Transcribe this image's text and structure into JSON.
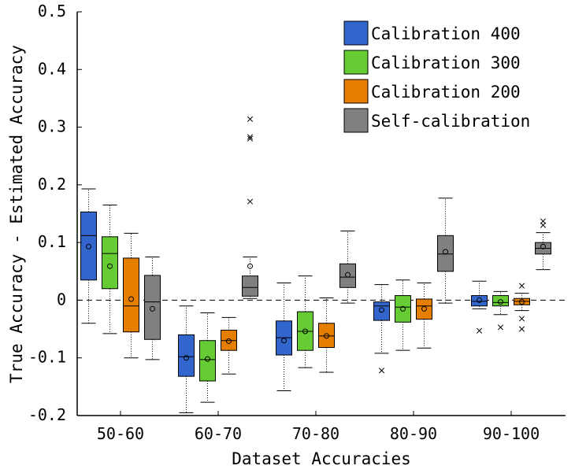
{
  "chart_data": {
    "type": "box",
    "xlabel": "Dataset Accuracies",
    "ylabel": "True Accuracy - Estimated Accuracy",
    "ylim": [
      -0.2,
      0.5
    ],
    "yticks": [
      -0.2,
      -0.1,
      0,
      0.1,
      0.2,
      0.3,
      0.4,
      0.5
    ],
    "ytick_labels": [
      "-0.2",
      "-0.1",
      "0",
      "0.1",
      "0.2",
      "0.3",
      "0.4",
      "0.5"
    ],
    "categories": [
      "50-60",
      "60-70",
      "70-80",
      "80-90",
      "90-100"
    ],
    "reference_line": 0,
    "legend_position": "top-right",
    "series": [
      {
        "name": "Calibration 400",
        "color": "#3366cc",
        "boxes": [
          {
            "whislo": -0.04,
            "q1": 0.035,
            "med": 0.112,
            "q3": 0.153,
            "whishi": 0.193,
            "mean": 0.093,
            "outliers": []
          },
          {
            "whislo": -0.195,
            "q1": -0.132,
            "med": -0.098,
            "q3": -0.06,
            "whishi": -0.01,
            "mean": -0.1,
            "outliers": []
          },
          {
            "whislo": -0.157,
            "q1": -0.095,
            "med": -0.065,
            "q3": -0.036,
            "whishi": 0.03,
            "mean": -0.07,
            "outliers": []
          },
          {
            "whislo": -0.092,
            "q1": -0.035,
            "med": -0.01,
            "q3": -0.003,
            "whishi": 0.027,
            "mean": -0.017,
            "outliers": [
              -0.122
            ]
          },
          {
            "whislo": -0.015,
            "q1": -0.01,
            "med": -0.002,
            "q3": 0.008,
            "whishi": 0.033,
            "mean": 0.0,
            "outliers": [
              -0.053
            ]
          }
        ]
      },
      {
        "name": "Calibration 300",
        "color": "#66cc33",
        "boxes": [
          {
            "whislo": -0.058,
            "q1": 0.02,
            "med": 0.081,
            "q3": 0.11,
            "whishi": 0.165,
            "mean": 0.059,
            "outliers": []
          },
          {
            "whislo": -0.177,
            "q1": -0.14,
            "med": -0.103,
            "q3": -0.07,
            "whishi": -0.022,
            "mean": -0.102,
            "outliers": []
          },
          {
            "whislo": -0.117,
            "q1": -0.087,
            "med": -0.054,
            "q3": -0.02,
            "whishi": 0.042,
            "mean": -0.054,
            "outliers": []
          },
          {
            "whislo": -0.087,
            "q1": -0.038,
            "med": -0.012,
            "q3": 0.008,
            "whishi": 0.035,
            "mean": -0.015,
            "outliers": []
          },
          {
            "whislo": -0.025,
            "q1": -0.01,
            "med": -0.004,
            "q3": 0.008,
            "whishi": 0.015,
            "mean": -0.003,
            "outliers": [
              -0.047
            ]
          }
        ]
      },
      {
        "name": "Calibration 200",
        "color": "#e67e00",
        "boxes": [
          {
            "whislo": -0.1,
            "q1": -0.055,
            "med": -0.01,
            "q3": 0.073,
            "whishi": 0.116,
            "mean": 0.002,
            "outliers": []
          },
          {
            "whislo": -0.128,
            "q1": -0.087,
            "med": -0.07,
            "q3": -0.052,
            "whishi": -0.03,
            "mean": -0.071,
            "outliers": []
          },
          {
            "whislo": -0.125,
            "q1": -0.082,
            "med": -0.062,
            "q3": -0.04,
            "whishi": 0.004,
            "mean": -0.062,
            "outliers": []
          },
          {
            "whislo": -0.083,
            "q1": -0.033,
            "med": -0.01,
            "q3": 0.002,
            "whishi": 0.03,
            "mean": -0.015,
            "outliers": []
          },
          {
            "whislo": -0.018,
            "q1": -0.008,
            "med": -0.002,
            "q3": 0.003,
            "whishi": 0.012,
            "mean": -0.003,
            "outliers": [
              -0.05,
              -0.032,
              0.025
            ]
          }
        ]
      },
      {
        "name": "Self-calibration",
        "color": "#808080",
        "boxes": [
          {
            "whislo": -0.103,
            "q1": -0.068,
            "med": -0.003,
            "q3": 0.043,
            "whishi": 0.075,
            "mean": -0.015,
            "outliers": []
          },
          {
            "whislo": 0.003,
            "q1": 0.007,
            "med": 0.022,
            "q3": 0.042,
            "whishi": 0.075,
            "mean": 0.059,
            "outliers": [
              0.171,
              0.28,
              0.283,
              0.314
            ]
          },
          {
            "whislo": -0.005,
            "q1": 0.022,
            "med": 0.04,
            "q3": 0.063,
            "whishi": 0.12,
            "mean": 0.044,
            "outliers": []
          },
          {
            "whislo": -0.005,
            "q1": 0.05,
            "med": 0.08,
            "q3": 0.112,
            "whishi": 0.177,
            "mean": 0.084,
            "outliers": []
          },
          {
            "whislo": 0.053,
            "q1": 0.08,
            "med": 0.09,
            "q3": 0.1,
            "whishi": 0.117,
            "mean": 0.093,
            "outliers": [
              0.13,
              0.137
            ]
          }
        ]
      }
    ]
  }
}
